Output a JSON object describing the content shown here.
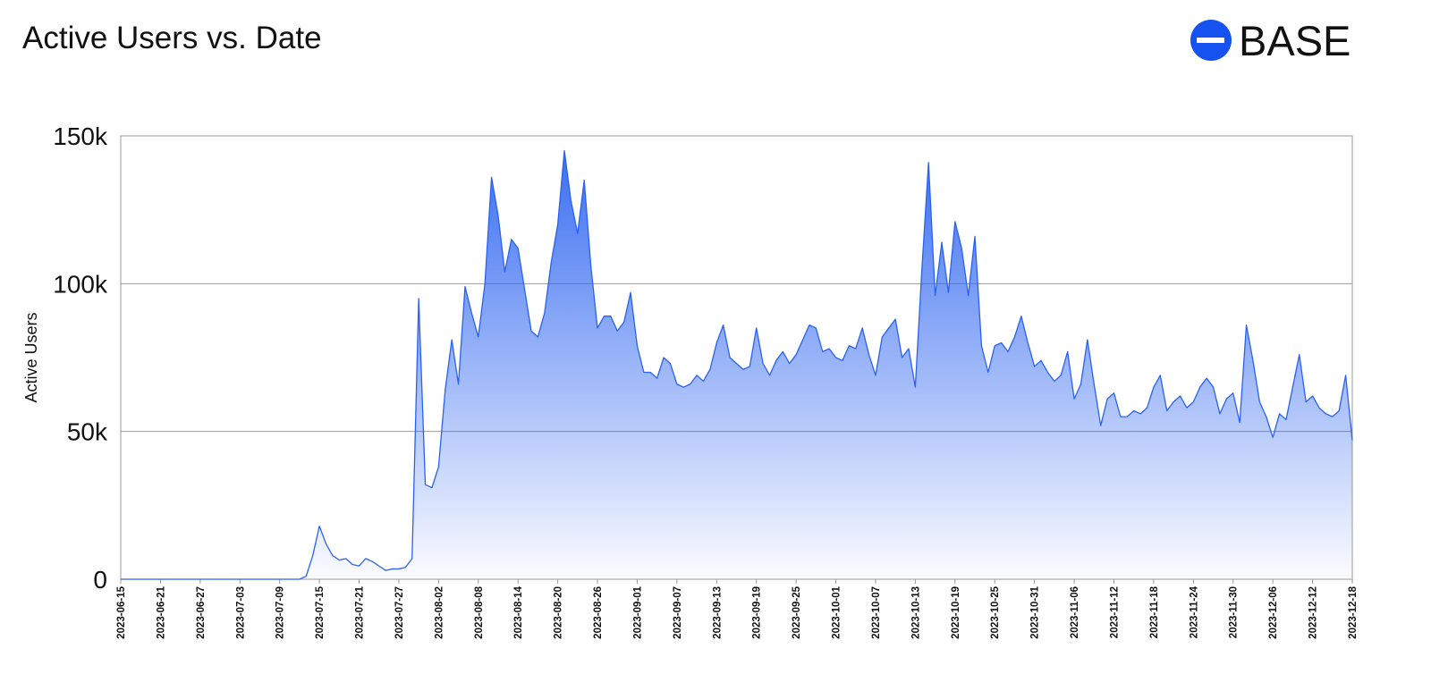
{
  "logo": {
    "text": "BASE",
    "color": "#1652f0"
  },
  "chart_data": {
    "type": "area",
    "title": "Active Users vs. Date",
    "y_label": "Active Users",
    "color": "#2a62f0",
    "grid": true,
    "ylim": [
      0,
      150000
    ],
    "yticks": [
      0,
      {
        "value": 50000,
        "label": "50k"
      },
      {
        "value": 100000,
        "label": "100k"
      },
      {
        "value": 150000,
        "label": "150k"
      }
    ],
    "categories": [
      "2023-06-15",
      null,
      null,
      null,
      null,
      null,
      "2023-06-21",
      null,
      null,
      null,
      null,
      null,
      "2023-06-27",
      null,
      null,
      null,
      null,
      null,
      "2023-07-03",
      null,
      null,
      null,
      null,
      null,
      "2023-07-09",
      null,
      null,
      null,
      null,
      null,
      "2023-07-15",
      null,
      null,
      null,
      null,
      null,
      "2023-07-21",
      null,
      null,
      null,
      null,
      null,
      "2023-07-27",
      null,
      null,
      null,
      null,
      null,
      "2023-08-02",
      null,
      null,
      null,
      null,
      null,
      "2023-08-08",
      null,
      null,
      null,
      null,
      null,
      "2023-08-14",
      null,
      null,
      null,
      null,
      null,
      "2023-08-20",
      null,
      null,
      null,
      null,
      null,
      "2023-08-26",
      null,
      null,
      null,
      null,
      null,
      "2023-09-01",
      null,
      null,
      null,
      null,
      null,
      "2023-09-07",
      null,
      null,
      null,
      null,
      null,
      "2023-09-13",
      null,
      null,
      null,
      null,
      null,
      "2023-09-19",
      null,
      null,
      null,
      null,
      null,
      "2023-09-25",
      null,
      null,
      null,
      null,
      null,
      "2023-10-01",
      null,
      null,
      null,
      null,
      null,
      "2023-10-07",
      null,
      null,
      null,
      null,
      null,
      "2023-10-13",
      null,
      null,
      null,
      null,
      null,
      "2023-10-19",
      null,
      null,
      null,
      null,
      null,
      "2023-10-25",
      null,
      null,
      null,
      null,
      null,
      "2023-10-31",
      null,
      null,
      null,
      null,
      null,
      "2023-11-06",
      null,
      null,
      null,
      null,
      null,
      "2023-11-12",
      null,
      null,
      null,
      null,
      null,
      "2023-11-18",
      null,
      null,
      null,
      null,
      null,
      "2023-11-24",
      null,
      null,
      null,
      null,
      null,
      "2023-11-30",
      null,
      null,
      null,
      null,
      null,
      "2023-12-06",
      null,
      null,
      null,
      null,
      null,
      "2023-12-12",
      null,
      null,
      null,
      null,
      null,
      "2023-12-18"
    ],
    "values": [
      0,
      0,
      0,
      0,
      0,
      0,
      0,
      0,
      0,
      0,
      0,
      0,
      0,
      0,
      0,
      0,
      0,
      0,
      0,
      0,
      0,
      0,
      0,
      0,
      0,
      0,
      0,
      0,
      1000,
      8000,
      18000,
      12000,
      8000,
      6500,
      7000,
      5000,
      4500,
      7000,
      6000,
      4500,
      3000,
      3500,
      3500,
      4000,
      7000,
      95000,
      32000,
      31000,
      38000,
      64000,
      81000,
      66000,
      99000,
      90000,
      82000,
      100000,
      136000,
      123000,
      104000,
      115000,
      112000,
      98000,
      84000,
      82000,
      90000,
      107000,
      120000,
      145000,
      128000,
      117000,
      135000,
      106000,
      85000,
      89000,
      89000,
      84000,
      87000,
      97000,
      79000,
      70000,
      70000,
      68000,
      75000,
      73000,
      66000,
      65000,
      66000,
      69000,
      67000,
      71000,
      80000,
      86000,
      75000,
      73000,
      71000,
      72000,
      85000,
      73000,
      69000,
      74000,
      77000,
      73000,
      76000,
      81000,
      86000,
      85000,
      77000,
      78000,
      75000,
      74000,
      79000,
      78000,
      85000,
      76000,
      69000,
      82000,
      85000,
      88000,
      75000,
      78000,
      65000,
      105000,
      141000,
      96000,
      114000,
      97000,
      121000,
      112000,
      96000,
      116000,
      79000,
      70000,
      79000,
      80000,
      77000,
      82000,
      89000,
      80000,
      72000,
      74000,
      70000,
      67000,
      69000,
      77000,
      61000,
      66000,
      81000,
      66000,
      52000,
      61000,
      63000,
      55000,
      55000,
      57000,
      56000,
      58000,
      65000,
      69000,
      57000,
      60000,
      62000,
      58000,
      60000,
      65000,
      68000,
      65000,
      56000,
      61000,
      63000,
      53000,
      86000,
      74000,
      60000,
      55000,
      48000,
      56000,
      54000,
      65000,
      76000,
      60000,
      62000,
      58000,
      56000,
      55000,
      57000,
      69000,
      47000
    ]
  }
}
